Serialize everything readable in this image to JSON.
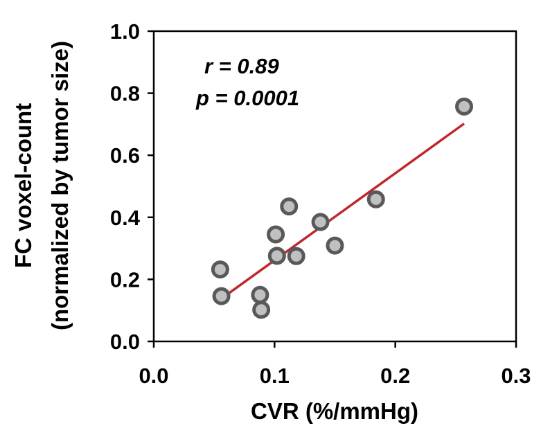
{
  "chart_data": {
    "type": "scatter",
    "title": "",
    "xlabel": "CVR (%/mmHg)",
    "ylabel_line1": "FC voxel-count",
    "ylabel_line2": "(normalized by tumor size)",
    "xlim": [
      0.0,
      0.3
    ],
    "ylim": [
      0.0,
      1.0
    ],
    "x_ticks": [
      0.0,
      0.1,
      0.2,
      0.3
    ],
    "x_tick_labels": [
      "0.0",
      "0.1",
      "0.2",
      "0.3"
    ],
    "y_ticks": [
      0.0,
      0.2,
      0.4,
      0.6,
      0.8,
      1.0
    ],
    "y_tick_labels": [
      "0.0",
      "0.2",
      "0.4",
      "0.6",
      "0.8",
      "1.0"
    ],
    "grid": false,
    "legend": "none",
    "series": [
      {
        "name": "data",
        "points": [
          {
            "x": 0.055,
            "y": 0.232
          },
          {
            "x": 0.056,
            "y": 0.146
          },
          {
            "x": 0.088,
            "y": 0.15
          },
          {
            "x": 0.089,
            "y": 0.102
          },
          {
            "x": 0.101,
            "y": 0.345
          },
          {
            "x": 0.102,
            "y": 0.276
          },
          {
            "x": 0.112,
            "y": 0.435
          },
          {
            "x": 0.118,
            "y": 0.275
          },
          {
            "x": 0.138,
            "y": 0.385
          },
          {
            "x": 0.15,
            "y": 0.309
          },
          {
            "x": 0.184,
            "y": 0.458
          },
          {
            "x": 0.257,
            "y": 0.757
          }
        ]
      }
    ],
    "fit_line": {
      "x": [
        0.056,
        0.257
      ],
      "y": [
        0.138,
        0.702
      ]
    },
    "annotations": [
      "r = 0.89",
      "p = 0.0001"
    ],
    "colors": {
      "marker_fill": "#c0c0c0",
      "marker_edge": "#595959",
      "fit_line": "#c0272d",
      "axis": "#000000"
    }
  }
}
